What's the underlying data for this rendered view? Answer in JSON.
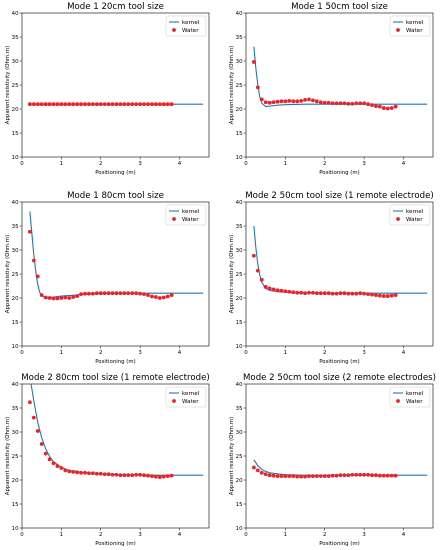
{
  "chart_data": [
    {
      "type": "line",
      "title": "Mode 1 20cm tool size",
      "xlabel": "Positioning (m)",
      "ylabel": "Apparent resistivity (Ohm.m)",
      "xlim": [
        0,
        4.75
      ],
      "ylim": [
        10,
        40
      ],
      "xticks": [
        "0",
        "1",
        "2",
        "3",
        "4"
      ],
      "yticks": [
        "10",
        "15",
        "20",
        "25",
        "30",
        "35",
        "40"
      ],
      "legend": "top-right",
      "series": [
        {
          "name": "kernel",
          "kind": "line",
          "color": "#1f77b4",
          "x": [
            0.2,
            0.5,
            1.0,
            1.5,
            2.0,
            2.5,
            3.0,
            3.5,
            4.0,
            4.6
          ],
          "y": [
            21.0,
            21.0,
            21.0,
            21.0,
            21.0,
            21.0,
            21.0,
            21.0,
            21.0,
            21.0
          ]
        },
        {
          "name": "Water",
          "kind": "scatter",
          "color": "#e8242b",
          "x": [
            0.2,
            0.3,
            0.4,
            0.5,
            0.6,
            0.7,
            0.8,
            0.9,
            1.0,
            1.1,
            1.2,
            1.3,
            1.4,
            1.5,
            1.6,
            1.7,
            1.8,
            1.9,
            2.0,
            2.1,
            2.2,
            2.3,
            2.4,
            2.5,
            2.6,
            2.7,
            2.8,
            2.9,
            3.0,
            3.1,
            3.2,
            3.3,
            3.4,
            3.5,
            3.6,
            3.7,
            3.8
          ],
          "y": [
            21.0,
            21.0,
            21.0,
            21.0,
            21.0,
            21.0,
            21.0,
            21.0,
            21.0,
            21.0,
            21.0,
            21.0,
            21.0,
            21.0,
            21.0,
            21.0,
            21.0,
            21.0,
            21.0,
            21.0,
            21.0,
            21.0,
            21.0,
            21.0,
            21.0,
            21.0,
            21.0,
            21.0,
            21.0,
            21.0,
            21.0,
            21.0,
            21.0,
            21.0,
            21.0,
            21.0,
            21.0
          ]
        }
      ]
    },
    {
      "type": "line",
      "title": "Mode 1 50cm tool size",
      "xlabel": "Positioning (m)",
      "ylabel": "Apparent resistivity (Ohm.m)",
      "xlim": [
        0,
        4.75
      ],
      "ylim": [
        10,
        40
      ],
      "xticks": [
        "0",
        "1",
        "2",
        "3",
        "4"
      ],
      "yticks": [
        "10",
        "15",
        "20",
        "25",
        "30",
        "35",
        "40"
      ],
      "legend": "top-right",
      "series": [
        {
          "name": "kernel",
          "kind": "line",
          "color": "#1f77b4",
          "x": [
            0.2,
            0.25,
            0.3,
            0.35,
            0.4,
            0.5,
            0.6,
            0.8,
            1.0,
            1.5,
            2.0,
            2.5,
            3.0,
            3.5,
            4.0,
            4.6
          ],
          "y": [
            33.0,
            28.5,
            25.0,
            22.5,
            21.2,
            20.5,
            20.6,
            20.8,
            20.9,
            21.0,
            21.0,
            21.0,
            21.0,
            21.0,
            21.0,
            21.0
          ]
        },
        {
          "name": "Water",
          "kind": "scatter",
          "color": "#e8242b",
          "x": [
            0.2,
            0.3,
            0.4,
            0.5,
            0.6,
            0.7,
            0.8,
            0.9,
            1.0,
            1.1,
            1.2,
            1.3,
            1.4,
            1.5,
            1.6,
            1.7,
            1.8,
            1.9,
            2.0,
            2.1,
            2.2,
            2.3,
            2.4,
            2.5,
            2.6,
            2.7,
            2.8,
            2.9,
            3.0,
            3.1,
            3.2,
            3.3,
            3.4,
            3.5,
            3.6,
            3.7,
            3.8
          ],
          "y": [
            29.8,
            24.5,
            22.0,
            21.4,
            21.3,
            21.4,
            21.5,
            21.6,
            21.6,
            21.7,
            21.6,
            21.6,
            21.7,
            21.9,
            22.0,
            21.8,
            21.6,
            21.4,
            21.3,
            21.3,
            21.2,
            21.2,
            21.2,
            21.2,
            21.1,
            21.1,
            21.2,
            21.2,
            21.2,
            21.0,
            20.8,
            20.6,
            20.5,
            20.2,
            20.1,
            20.2,
            20.5
          ]
        }
      ]
    },
    {
      "type": "line",
      "title": "Mode 1 80cm tool size",
      "xlabel": "Positioning (m)",
      "ylabel": "Apparent resistivity (Ohm.m)",
      "xlim": [
        0,
        4.75
      ],
      "ylim": [
        10,
        40
      ],
      "xticks": [
        "0",
        "1",
        "2",
        "3",
        "4"
      ],
      "yticks": [
        "10",
        "15",
        "20",
        "25",
        "30",
        "35",
        "40"
      ],
      "legend": "top-right",
      "series": [
        {
          "name": "kernel",
          "kind": "line",
          "color": "#1f77b4",
          "x": [
            0.2,
            0.25,
            0.3,
            0.35,
            0.4,
            0.45,
            0.5,
            0.6,
            0.8,
            1.0,
            1.5,
            2.0,
            3.0,
            4.0,
            4.6
          ],
          "y": [
            38.0,
            33.5,
            29.0,
            25.5,
            22.8,
            21.2,
            20.5,
            20.1,
            20.2,
            20.4,
            20.7,
            20.9,
            21.0,
            21.0,
            21.0
          ]
        },
        {
          "name": "Water",
          "kind": "scatter",
          "color": "#e8242b",
          "x": [
            0.2,
            0.3,
            0.4,
            0.5,
            0.6,
            0.7,
            0.8,
            0.9,
            1.0,
            1.1,
            1.2,
            1.3,
            1.4,
            1.5,
            1.6,
            1.7,
            1.8,
            1.9,
            2.0,
            2.1,
            2.2,
            2.3,
            2.4,
            2.5,
            2.6,
            2.7,
            2.8,
            2.9,
            3.0,
            3.1,
            3.2,
            3.3,
            3.4,
            3.5,
            3.6,
            3.7,
            3.8
          ],
          "y": [
            33.8,
            27.8,
            24.5,
            20.6,
            20.1,
            20.0,
            19.9,
            19.9,
            20.0,
            20.1,
            20.0,
            20.2,
            20.4,
            20.8,
            20.9,
            20.9,
            20.9,
            21.0,
            21.0,
            21.0,
            21.0,
            21.0,
            21.0,
            21.0,
            21.0,
            21.0,
            21.0,
            21.0,
            20.9,
            20.8,
            20.6,
            20.3,
            20.2,
            20.0,
            20.1,
            20.3,
            20.6
          ]
        }
      ]
    },
    {
      "type": "line",
      "title": "Mode 2 50cm tool size (1 remote electrode)",
      "xlabel": "Positioning (m)",
      "ylabel": "Apparent resistivity (Ohm.m)",
      "xlim": [
        0,
        4.75
      ],
      "ylim": [
        10,
        40
      ],
      "xticks": [
        "0",
        "1",
        "2",
        "3",
        "4"
      ],
      "yticks": [
        "10",
        "15",
        "20",
        "25",
        "30",
        "35",
        "40"
      ],
      "legend": "top-right",
      "series": [
        {
          "name": "kernel",
          "kind": "line",
          "color": "#1f77b4",
          "x": [
            0.2,
            0.25,
            0.3,
            0.35,
            0.4,
            0.5,
            0.6,
            0.8,
            1.0,
            1.5,
            2.0,
            3.0,
            4.0,
            4.6
          ],
          "y": [
            35.0,
            30.5,
            27.0,
            24.8,
            23.3,
            22.0,
            21.6,
            21.3,
            21.2,
            21.1,
            21.0,
            21.0,
            21.0,
            21.0
          ]
        },
        {
          "name": "Water",
          "kind": "scatter",
          "color": "#e8242b",
          "x": [
            0.2,
            0.3,
            0.4,
            0.5,
            0.6,
            0.7,
            0.8,
            0.9,
            1.0,
            1.1,
            1.2,
            1.3,
            1.4,
            1.5,
            1.6,
            1.7,
            1.8,
            1.9,
            2.0,
            2.1,
            2.2,
            2.3,
            2.4,
            2.5,
            2.6,
            2.7,
            2.8,
            2.9,
            3.0,
            3.1,
            3.2,
            3.3,
            3.4,
            3.5,
            3.6,
            3.7,
            3.8
          ],
          "y": [
            28.8,
            25.7,
            23.8,
            22.3,
            22.0,
            21.8,
            21.6,
            21.5,
            21.4,
            21.3,
            21.2,
            21.1,
            21.1,
            21.0,
            21.1,
            21.1,
            21.0,
            21.0,
            21.0,
            21.0,
            20.9,
            20.9,
            21.0,
            21.0,
            20.9,
            20.9,
            20.9,
            21.0,
            20.9,
            20.8,
            20.7,
            20.6,
            20.5,
            20.4,
            20.4,
            20.5,
            20.6
          ]
        }
      ]
    },
    {
      "type": "line",
      "title": "Mode 2 80cm tool size (1 remote electrode)",
      "xlabel": "Positioning (m)",
      "ylabel": "Apparent resistivity (Ohm.m)",
      "xlim": [
        0,
        4.75
      ],
      "ylim": [
        10,
        40
      ],
      "xticks": [
        "0",
        "1",
        "2",
        "3",
        "4"
      ],
      "yticks": [
        "10",
        "15",
        "20",
        "25",
        "30",
        "35",
        "40"
      ],
      "legend": "top-right",
      "series": [
        {
          "name": "kernel",
          "kind": "line",
          "color": "#1f77b4",
          "x": [
            0.2,
            0.3,
            0.4,
            0.5,
            0.6,
            0.7,
            0.8,
            1.0,
            1.2,
            1.5,
            2.0,
            2.5,
            3.0,
            3.5,
            4.0,
            4.6
          ],
          "y": [
            41.5,
            36.5,
            32.0,
            28.8,
            26.5,
            24.9,
            23.8,
            22.6,
            22.0,
            21.6,
            21.3,
            21.1,
            21.0,
            21.0,
            21.0,
            21.0
          ]
        },
        {
          "name": "Water",
          "kind": "scatter",
          "color": "#e8242b",
          "x": [
            0.2,
            0.3,
            0.4,
            0.5,
            0.6,
            0.7,
            0.8,
            0.9,
            1.0,
            1.1,
            1.2,
            1.3,
            1.4,
            1.5,
            1.6,
            1.7,
            1.8,
            1.9,
            2.0,
            2.1,
            2.2,
            2.3,
            2.4,
            2.5,
            2.6,
            2.7,
            2.8,
            2.9,
            3.0,
            3.1,
            3.2,
            3.3,
            3.4,
            3.5,
            3.6,
            3.7,
            3.8
          ],
          "y": [
            36.2,
            33.0,
            30.2,
            27.5,
            25.5,
            24.3,
            23.5,
            22.9,
            22.5,
            22.0,
            21.8,
            21.7,
            21.6,
            21.5,
            21.5,
            21.4,
            21.4,
            21.3,
            21.3,
            21.2,
            21.2,
            21.1,
            21.1,
            21.0,
            21.0,
            21.0,
            21.0,
            21.1,
            21.1,
            21.0,
            20.9,
            20.8,
            20.7,
            20.6,
            20.7,
            20.8,
            20.9
          ]
        }
      ]
    },
    {
      "type": "line",
      "title": "Mode 2 50cm tool size (2 remote electrodes)",
      "xlabel": "Positioning (m)",
      "ylabel": "Apparent resistivity (Ohm.m)",
      "xlim": [
        0,
        4.75
      ],
      "ylim": [
        10,
        40
      ],
      "xticks": [
        "0",
        "1",
        "2",
        "3",
        "4"
      ],
      "yticks": [
        "10",
        "15",
        "20",
        "25",
        "30",
        "35",
        "40"
      ],
      "legend": "top-right",
      "series": [
        {
          "name": "kernel",
          "kind": "line",
          "color": "#1f77b4",
          "x": [
            0.2,
            0.3,
            0.4,
            0.5,
            0.6,
            0.8,
            1.0,
            1.5,
            2.0,
            2.5,
            3.0,
            3.5,
            4.0,
            4.6
          ],
          "y": [
            24.2,
            23.0,
            22.2,
            21.8,
            21.5,
            21.3,
            21.1,
            21.0,
            21.0,
            21.0,
            21.0,
            21.0,
            21.0,
            21.0
          ]
        },
        {
          "name": "Water",
          "kind": "scatter",
          "color": "#e8242b",
          "x": [
            0.2,
            0.3,
            0.4,
            0.5,
            0.6,
            0.7,
            0.8,
            0.9,
            1.0,
            1.1,
            1.2,
            1.3,
            1.4,
            1.5,
            1.6,
            1.7,
            1.8,
            1.9,
            2.0,
            2.1,
            2.2,
            2.3,
            2.4,
            2.5,
            2.6,
            2.7,
            2.8,
            2.9,
            3.0,
            3.1,
            3.2,
            3.3,
            3.4,
            3.5,
            3.6,
            3.7,
            3.8
          ],
          "y": [
            22.6,
            22.0,
            21.5,
            21.2,
            21.0,
            20.9,
            20.8,
            20.8,
            20.8,
            20.8,
            20.8,
            20.7,
            20.7,
            20.7,
            20.8,
            20.8,
            20.8,
            20.8,
            20.8,
            20.8,
            20.9,
            20.9,
            21.0,
            21.0,
            21.0,
            21.1,
            21.1,
            21.1,
            21.1,
            21.1,
            21.0,
            21.0,
            20.9,
            20.9,
            20.9,
            20.9,
            20.9
          ]
        }
      ]
    }
  ]
}
